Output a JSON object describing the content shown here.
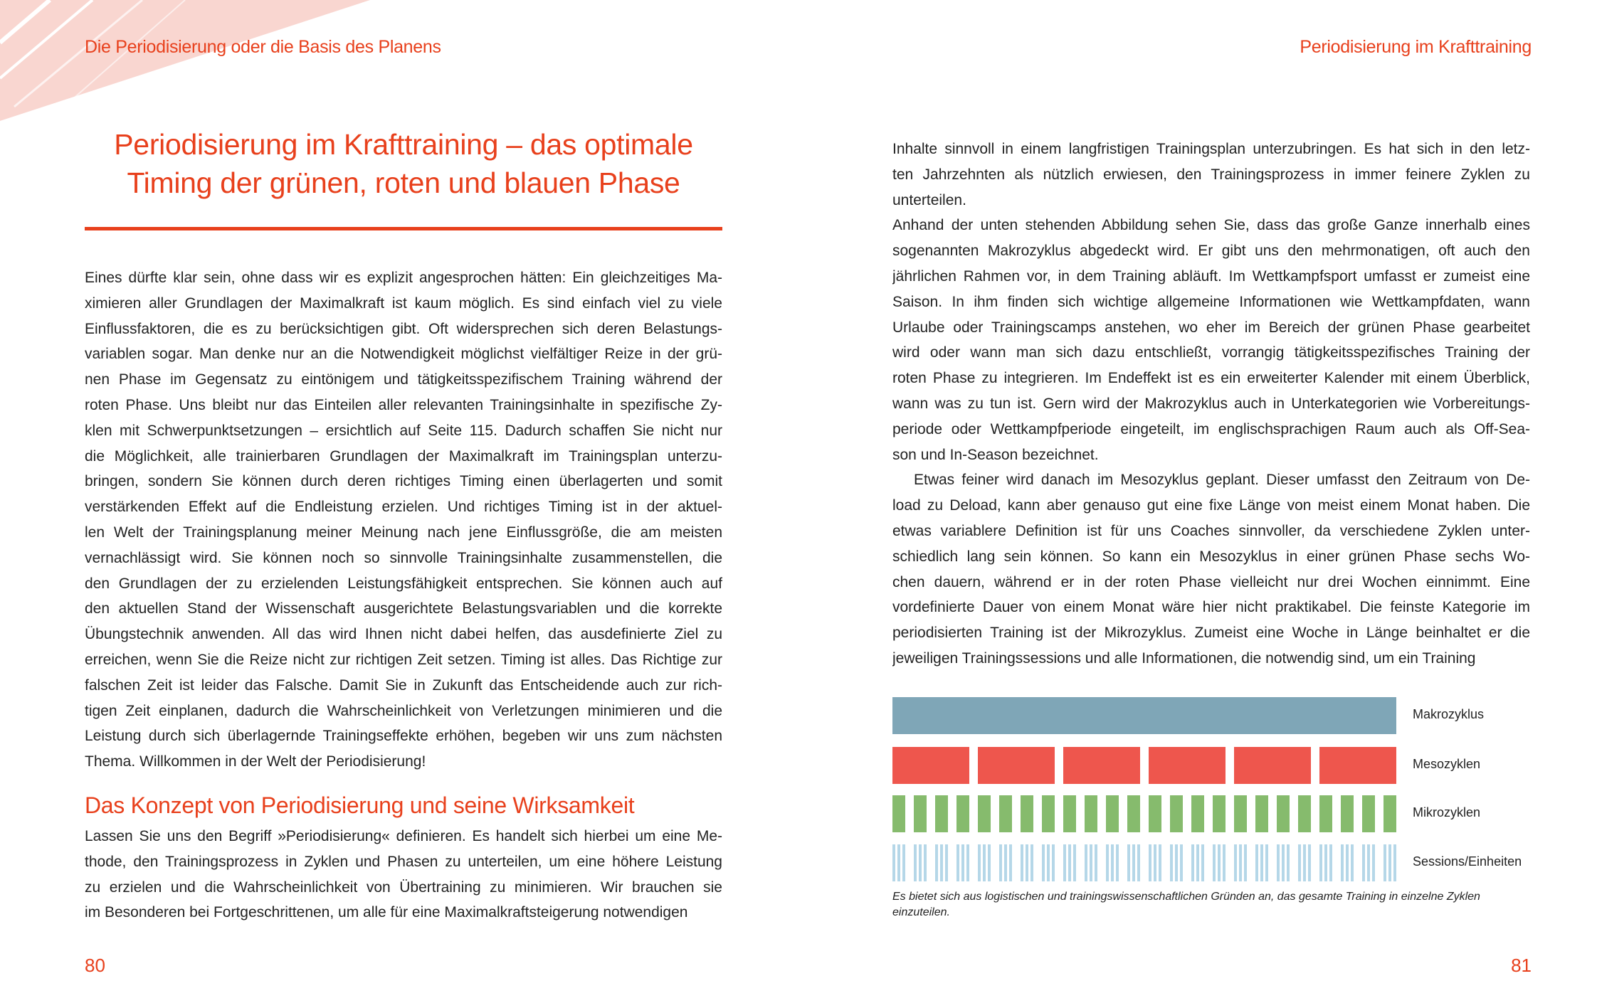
{
  "header": {
    "left": "Die Periodisierung oder die Basis des Planens",
    "right": "Periodisierung im Krafttraining"
  },
  "title": {
    "line1": "Periodisierung im Krafttraining – das optimale",
    "line2": "Timing der grünen, roten und blauen Phase"
  },
  "left": {
    "para1": [
      "Eines dürfte klar sein, ohne dass wir es explizit angesprochen hätten: Ein gleichzeitiges Ma-",
      "ximieren aller Grundlagen der Maximalkraft ist kaum möglich. Es sind einfach viel zu viele",
      "Einflussfaktoren, die es zu berücksichtigen gibt. Oft widersprechen sich deren Belastungs-",
      "variablen sogar. Man denke nur an die Notwendigkeit möglichst vielfältiger Reize in der grü-",
      "nen Phase im Gegensatz zu eintönigem und tätigkeitsspezifischem Training während der",
      "roten Phase. Uns bleibt nur das Einteilen aller relevanten Trainingsinhalte in spezifische Zy-",
      "klen mit Schwerpunktsetzungen – ersichtlich auf Seite 115. Dadurch schaffen Sie nicht nur",
      "die Möglichkeit, alle trainierbaren Grundlagen der Maximalkraft im Trainingsplan unterzu-",
      "bringen, sondern Sie können durch deren richtiges Timing einen überlagerten und somit",
      "verstärkenden Effekt auf die Endleistung erzielen. Und richtiges Timing ist in der aktuel-",
      "len Welt der Trainingsplanung meiner Meinung nach jene Einflussgröße, die am meisten",
      "vernachlässigt wird. Sie können noch so sinnvolle Trainingsinhalte zusammenstellen, die",
      "den Grundlagen der zu erzielenden Leistungsfähigkeit entsprechen. Sie können auch auf",
      "den aktuellen Stand der Wissenschaft ausgerichtete Belastungsvariablen und die korrekte",
      "Übungstechnik anwenden. All das wird Ihnen nicht dabei helfen, das ausdefinierte Ziel zu",
      "erreichen, wenn Sie die Reize nicht zur richtigen Zeit setzen. Timing ist alles. Das Richtige zur",
      "falschen Zeit ist leider das Falsche. Damit Sie in Zukunft das Entscheidende auch zur rich-",
      "tigen Zeit einplanen, dadurch die Wahrscheinlichkeit von Verletzungen minimieren und die",
      "Leistung durch sich überlagernde Trainingseffekte erhöhen, begeben wir uns zum nächsten",
      "Thema. Willkommen in der Welt der Periodisierung!"
    ],
    "subheading": "Das Konzept von Periodisierung und seine Wirksamkeit",
    "para2": [
      "Lassen Sie uns den Begriff »Periodisierung« definieren. Es handelt sich hierbei um eine Me-",
      "thode, den Trainingsprozess in Zyklen und Phasen zu unterteilen, um eine höhere Leistung",
      "zu erzielen und die Wahrscheinlichkeit von Übertraining zu minimieren. Wir brauchen sie",
      "im Besonderen bei Fortgeschrittenen, um alle für eine Maximalkraftsteigerung notwendigen"
    ],
    "page_number": "80"
  },
  "right": {
    "para1": [
      "Inhalte sinnvoll in einem langfristigen Trainingsplan unterzubringen. Es hat sich in den letz-",
      "ten Jahrzehnten als nützlich erwiesen, den Trainingsprozess in immer feinere Zyklen zu",
      "unterteilen."
    ],
    "para2": [
      "Anhand der unten stehenden Abbildung sehen Sie, dass das große Ganze innerhalb eines",
      "sogenannten Makrozyklus abgedeckt wird. Er gibt uns den mehrmonatigen, oft auch den",
      "jährlichen Rahmen vor, in dem Training abläuft. Im Wettkampfsport umfasst er zumeist eine",
      "Saison. In ihm finden sich wichtige allgemeine Informationen wie Wettkampfdaten, wann",
      "Urlaube oder Trainingscamps anstehen, wo eher im Bereich der grünen Phase gearbeitet",
      "wird oder wann man sich dazu entschließt, vorrangig tätigkeitsspezifisches Training der",
      "roten Phase zu integrieren. Im Endeffekt ist es ein erweiterter Kalender mit einem Überblick,",
      "wann was zu tun ist. Gern wird der Makrozyklus auch in Unterkategorien wie Vorbereitungs-",
      "periode oder Wettkampfperiode eingeteilt, im englischsprachigen Raum auch als Off-Sea-",
      "son und In-Season bezeichnet."
    ],
    "para3": [
      "Etwas feiner wird danach im Mesozyklus geplant. Dieser umfasst den Zeitraum von De-",
      "load zu Deload, kann aber genauso gut eine fixe Länge von meist einem Monat haben. Die",
      "etwas variablere Definition ist für uns Coaches sinnvoller, da verschiedene Zyklen unter-",
      "schiedlich lang sein können. So kann ein Mesozyklus in einer grünen Phase sechs Wo-",
      "chen dauern, während er in der roten Phase vielleicht nur drei Wochen einnimmt. Eine",
      "vordefinierte Dauer von einem Monat wäre hier nicht praktikabel. Die feinste Kategorie im",
      "periodisierten Training ist der Mikrozyklus. Zumeist eine Woche in Länge beinhaltet er die",
      "jeweiligen Trainingssessions und alle Informationen, die notwendig sind, um ein Training"
    ],
    "page_number": "81"
  },
  "diagram": {
    "rows": [
      {
        "label": "Makrozyklus",
        "count": 1,
        "color": "#7fa6b7"
      },
      {
        "label": "Mesozyklen",
        "count": 6,
        "color": "#ee564d"
      },
      {
        "label": "Mikrozyklen",
        "count": 24,
        "color": "#86bb6d"
      },
      {
        "label": "Sessions/Einheiten",
        "count": 72,
        "per_group": 3,
        "color": "#b5d7e8"
      }
    ],
    "caption": "Es bietet sich aus logistischen und trainingswissenschaftlichen Gründen an, das gesamte Training in einzelne Zyklen einzuteilen."
  },
  "colors": {
    "accent": "#e8401c",
    "swoosh": "#f9d6d0",
    "text": "#222222"
  }
}
